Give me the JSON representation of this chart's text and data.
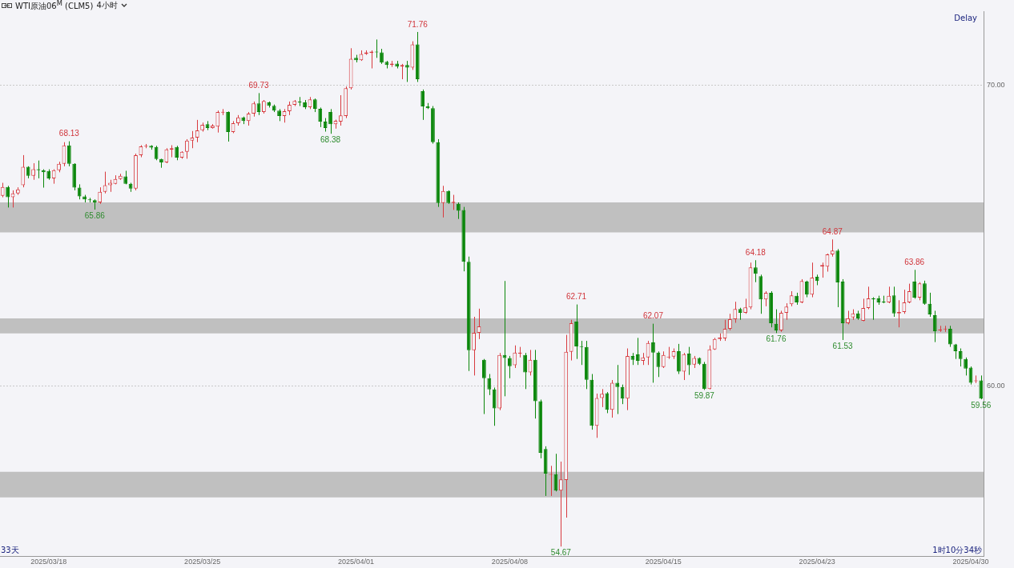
{
  "chart_data": {
    "type": "candlestick",
    "title": "WTI原油06$^{M}$ (CLM5)",
    "subtitle": "4小时",
    "categories": [
      null,
      null,
      null,
      null,
      null,
      null,
      null,
      null,
      null,
      "2025/03/18",
      null,
      null,
      null,
      null,
      null,
      null,
      null,
      null,
      null,
      null,
      null,
      null,
      null,
      null,
      null,
      null,
      null,
      null,
      null,
      null,
      null,
      null,
      null,
      null,
      null,
      null,
      null,
      null,
      null,
      "2025/03/25",
      null,
      null,
      null,
      null,
      null,
      null,
      null,
      null,
      null,
      null,
      null,
      null,
      null,
      null,
      null,
      null,
      null,
      null,
      null,
      null,
      null,
      null,
      null,
      null,
      null,
      null,
      null,
      null,
      null,
      "2025/04/01",
      null,
      null,
      null,
      null,
      null,
      null,
      null,
      null,
      null,
      null,
      null,
      null,
      null,
      null,
      null,
      null,
      null,
      null,
      null,
      null,
      null,
      null,
      null,
      null,
      null,
      null,
      null,
      null,
      null,
      "2025/04/08",
      null,
      null,
      null,
      null,
      null,
      null,
      null,
      null,
      null,
      null,
      null,
      null,
      null,
      null,
      null,
      null,
      null,
      null,
      null,
      null,
      null,
      null,
      null,
      null,
      null,
      null,
      null,
      null,
      null,
      "2025/04/15",
      null,
      null,
      null,
      null,
      null,
      null,
      null,
      null,
      null,
      null,
      null,
      null,
      null,
      null,
      null,
      null,
      null,
      null,
      null,
      null,
      null,
      null,
      null,
      null,
      null,
      null,
      null,
      null,
      null,
      "2025/04/23",
      null,
      null,
      null,
      null,
      null,
      null,
      null,
      null,
      null,
      null,
      null,
      null,
      null,
      null,
      null,
      null,
      null,
      null,
      null,
      null,
      null,
      null,
      null,
      null,
      null,
      null,
      null,
      null,
      null,
      "2025/04/30",
      null,
      null
    ],
    "ohlc": [
      [
        66.32,
        66.75,
        66.27,
        66.61
      ],
      [
        66.61,
        66.65,
        65.93,
        66.27
      ],
      [
        66.27,
        66.5,
        65.93,
        66.4
      ],
      [
        66.4,
        66.6,
        66.35,
        66.53
      ],
      [
        66.67,
        67.67,
        66.6,
        67.28
      ],
      [
        67.28,
        67.3,
        66.9,
        66.98
      ],
      [
        66.98,
        67.4,
        66.85,
        67.2
      ],
      [
        67.2,
        67.49,
        66.9,
        67.17
      ],
      [
        67.17,
        67.2,
        66.59,
        67.1
      ],
      [
        67.14,
        67.2,
        66.85,
        66.9
      ],
      [
        66.9,
        67.2,
        66.72,
        67.17
      ],
      [
        67.17,
        67.45,
        67.1,
        67.38
      ],
      [
        67.38,
        68.1,
        67.3,
        67.99
      ],
      [
        67.99,
        68.13,
        67.3,
        67.38
      ],
      [
        67.38,
        67.4,
        66.5,
        66.59
      ],
      [
        66.59,
        66.7,
        66.2,
        66.3
      ],
      [
        66.3,
        66.35,
        66.1,
        66.2
      ],
      [
        66.2,
        66.25,
        66.1,
        66.17
      ],
      [
        66.17,
        66.2,
        65.86,
        66.1
      ],
      [
        66.1,
        66.6,
        66.05,
        66.45
      ],
      [
        66.45,
        67.12,
        66.4,
        66.67
      ],
      [
        66.67,
        66.85,
        66.45,
        66.75
      ],
      [
        66.72,
        67.0,
        66.7,
        66.88
      ],
      [
        66.88,
        67.05,
        66.85,
        66.98
      ],
      [
        66.96,
        67.15,
        66.7,
        66.72
      ],
      [
        66.72,
        66.75,
        66.45,
        66.56
      ],
      [
        66.56,
        67.72,
        66.5,
        67.67
      ],
      [
        67.67,
        68.0,
        67.6,
        67.96
      ],
      [
        67.95,
        68.04,
        67.9,
        67.98
      ],
      [
        67.98,
        68.0,
        67.85,
        67.92
      ],
      [
        67.94,
        67.98,
        67.5,
        67.54
      ],
      [
        67.54,
        67.55,
        67.25,
        67.43
      ],
      [
        67.43,
        67.9,
        67.4,
        67.86
      ],
      [
        67.85,
        68.0,
        67.6,
        67.9
      ],
      [
        67.94,
        67.98,
        67.5,
        67.59
      ],
      [
        67.59,
        67.8,
        67.55,
        67.78
      ],
      [
        67.78,
        68.2,
        67.55,
        68.15
      ],
      [
        68.15,
        68.47,
        67.9,
        68.25
      ],
      [
        68.25,
        68.84,
        68.1,
        68.49
      ],
      [
        68.5,
        68.75,
        68.45,
        68.68
      ],
      [
        68.7,
        68.8,
        68.5,
        68.57
      ],
      [
        68.57,
        68.7,
        68.55,
        68.65
      ],
      [
        68.62,
        69.15,
        68.42,
        69.1
      ],
      [
        69.08,
        69.2,
        69.0,
        69.1
      ],
      [
        69.1,
        69.12,
        68.12,
        68.44
      ],
      [
        68.44,
        68.8,
        68.4,
        68.73
      ],
      [
        68.73,
        69.0,
        68.65,
        68.92
      ],
      [
        68.92,
        68.95,
        68.7,
        68.8
      ],
      [
        68.8,
        69.1,
        68.65,
        69.05
      ],
      [
        69.05,
        69.45,
        68.95,
        69.39
      ],
      [
        69.39,
        69.73,
        69.0,
        69.1
      ],
      [
        69.1,
        69.5,
        69.05,
        69.47
      ],
      [
        69.42,
        69.45,
        69.25,
        69.31
      ],
      [
        69.31,
        69.35,
        69.1,
        69.15
      ],
      [
        69.15,
        69.2,
        68.8,
        68.97
      ],
      [
        68.97,
        69.2,
        68.75,
        69.13
      ],
      [
        69.13,
        69.45,
        69.0,
        69.34
      ],
      [
        69.34,
        69.5,
        69.3,
        69.47
      ],
      [
        69.45,
        69.6,
        69.3,
        69.42
      ],
      [
        69.42,
        69.5,
        69.2,
        69.26
      ],
      [
        69.26,
        69.6,
        69.2,
        69.52
      ],
      [
        69.52,
        69.55,
        69.1,
        69.21
      ],
      [
        69.21,
        69.25,
        68.6,
        68.78
      ],
      [
        68.78,
        68.9,
        68.45,
        68.57
      ],
      [
        69.1,
        69.2,
        68.38,
        68.7
      ],
      [
        68.7,
        68.85,
        68.55,
        68.81
      ],
      [
        68.78,
        69.66,
        68.65,
        68.99
      ],
      [
        68.97,
        69.95,
        68.9,
        69.89
      ],
      [
        69.89,
        71.22,
        69.85,
        70.87
      ],
      [
        70.9,
        71.0,
        70.75,
        70.82
      ],
      [
        70.82,
        71.15,
        70.8,
        71.03
      ],
      [
        71.03,
        71.15,
        71.0,
        71.08
      ],
      [
        71.06,
        71.15,
        70.55,
        71.11
      ],
      [
        71.11,
        71.51,
        70.9,
        71.08
      ],
      [
        71.08,
        71.2,
        70.7,
        70.74
      ],
      [
        70.77,
        70.8,
        70.55,
        70.66
      ],
      [
        70.66,
        70.8,
        70.6,
        70.71
      ],
      [
        70.71,
        70.8,
        70.55,
        70.61
      ],
      [
        70.61,
        70.7,
        70.19,
        70.66
      ],
      [
        70.66,
        70.8,
        70.1,
        70.58
      ],
      [
        70.58,
        71.45,
        70.5,
        71.35
      ],
      [
        71.35,
        71.76,
        70.1,
        70.19
      ],
      [
        69.79,
        69.85,
        68.84,
        69.29
      ],
      [
        69.29,
        69.4,
        69.2,
        69.23
      ],
      [
        69.23,
        69.3,
        68.05,
        68.1
      ],
      [
        68.1,
        68.2,
        65.95,
        66.08
      ],
      [
        66.08,
        66.65,
        65.6,
        66.48
      ],
      [
        66.48,
        66.5,
        66.05,
        66.08
      ],
      [
        66.08,
        66.35,
        65.85,
        66.12
      ],
      [
        66.05,
        66.1,
        65.55,
        65.82
      ],
      [
        65.85,
        65.95,
        63.81,
        64.13
      ],
      [
        64.13,
        64.3,
        60.5,
        61.19
      ],
      [
        61.19,
        62.3,
        60.35,
        61.77
      ],
      [
        61.77,
        62.57,
        61.56,
        61.98
      ],
      [
        60.87,
        60.9,
        59.07,
        60.26
      ],
      [
        60.26,
        60.4,
        59.7,
        59.89
      ],
      [
        59.89,
        59.95,
        58.68,
        59.26
      ],
      [
        59.26,
        61.1,
        59.2,
        61.03
      ],
      [
        61.03,
        63.49,
        59.66,
        60.93
      ],
      [
        60.93,
        61.0,
        60.26,
        60.66
      ],
      [
        60.69,
        61.35,
        60.6,
        61.11
      ],
      [
        61.08,
        61.3,
        60.95,
        61.11
      ],
      [
        61.03,
        61.1,
        59.9,
        60.45
      ],
      [
        60.45,
        61.2,
        60.35,
        60.87
      ],
      [
        60.87,
        61.2,
        58.92,
        59.5
      ],
      [
        59.5,
        59.55,
        57.6,
        57.78
      ],
      [
        57.91,
        58.0,
        56.35,
        57.09
      ],
      [
        57.05,
        57.35,
        56.35,
        57.07
      ],
      [
        57.07,
        57.75,
        56.5,
        56.53
      ],
      [
        56.53,
        57.49,
        54.67,
        56.9
      ],
      [
        56.88,
        61.7,
        55.63,
        61.14
      ],
      [
        61.14,
        62.2,
        60.85,
        62.09
      ],
      [
        62.14,
        62.71,
        60.9,
        61.32
      ],
      [
        61.32,
        61.5,
        60.7,
        61.3
      ],
      [
        61.3,
        61.5,
        59.9,
        60.21
      ],
      [
        60.21,
        60.4,
        58.55,
        58.68
      ],
      [
        58.68,
        59.75,
        58.28,
        59.6
      ],
      [
        59.6,
        59.9,
        59.3,
        59.74
      ],
      [
        59.76,
        59.8,
        59.1,
        59.21
      ],
      [
        59.21,
        60.2,
        58.95,
        60.11
      ],
      [
        60.11,
        60.7,
        59.07,
        59.97
      ],
      [
        59.97,
        60.05,
        59.4,
        59.58
      ],
      [
        59.58,
        61.25,
        59.2,
        61.0
      ],
      [
        61.0,
        61.1,
        60.7,
        60.87
      ],
      [
        61.05,
        61.6,
        60.7,
        60.84
      ],
      [
        60.84,
        61.1,
        60.7,
        60.95
      ],
      [
        60.95,
        61.5,
        60.7,
        61.43
      ],
      [
        61.45,
        62.07,
        60.11,
        61.11
      ],
      [
        61.11,
        61.15,
        60.3,
        60.63
      ],
      [
        60.63,
        61.15,
        60.6,
        61.03
      ],
      [
        60.95,
        61.3,
        60.9,
        60.98
      ],
      [
        60.98,
        61.25,
        60.9,
        61.16
      ],
      [
        61.16,
        61.4,
        60.4,
        60.48
      ],
      [
        60.48,
        61.1,
        60.2,
        61.06
      ],
      [
        61.08,
        61.3,
        60.37,
        60.69
      ],
      [
        60.71,
        61.0,
        60.6,
        60.93
      ],
      [
        60.93,
        60.95,
        60.7,
        60.74
      ],
      [
        60.74,
        60.8,
        59.87,
        59.9
      ],
      [
        59.9,
        61.35,
        59.89,
        61.22
      ],
      [
        61.22,
        61.6,
        61.2,
        61.56
      ],
      [
        61.56,
        61.75,
        61.5,
        61.61
      ],
      [
        61.58,
        62.2,
        61.5,
        61.9
      ],
      [
        61.9,
        62.4,
        61.85,
        62.22
      ],
      [
        62.22,
        62.8,
        62.1,
        62.56
      ],
      [
        62.56,
        62.6,
        62.2,
        62.43
      ],
      [
        62.43,
        62.9,
        62.4,
        62.61
      ],
      [
        62.61,
        64.1,
        62.55,
        63.94
      ],
      [
        63.94,
        64.18,
        63.45,
        63.73
      ],
      [
        63.65,
        63.7,
        62.4,
        62.88
      ],
      [
        62.88,
        63.15,
        62.65,
        63.1
      ],
      [
        63.1,
        63.15,
        61.95,
        62.09
      ],
      [
        62.07,
        62.55,
        61.76,
        61.85
      ],
      [
        61.85,
        62.5,
        61.8,
        62.43
      ],
      [
        62.43,
        62.75,
        62.2,
        62.64
      ],
      [
        62.72,
        63.15,
        62.65,
        63.01
      ],
      [
        63.0,
        63.1,
        62.7,
        62.78
      ],
      [
        62.78,
        63.55,
        62.75,
        63.49
      ],
      [
        63.47,
        63.5,
        62.95,
        63.04
      ],
      [
        63.04,
        64.1,
        62.95,
        63.6
      ],
      [
        63.63,
        63.7,
        63.35,
        63.49
      ],
      [
        63.97,
        64.1,
        63.6,
        64.02
      ],
      [
        63.97,
        64.4,
        63.8,
        64.37
      ],
      [
        64.37,
        64.87,
        64.3,
        64.5
      ],
      [
        64.5,
        64.55,
        62.62,
        63.44
      ],
      [
        63.47,
        63.55,
        61.53,
        62.09
      ],
      [
        62.09,
        62.5,
        62.05,
        62.25
      ],
      [
        62.28,
        62.55,
        62.2,
        62.41
      ],
      [
        62.41,
        62.5,
        62.2,
        62.25
      ],
      [
        62.17,
        62.9,
        62.15,
        62.59
      ],
      [
        62.59,
        63.3,
        62.55,
        62.91
      ],
      [
        62.91,
        62.95,
        62.2,
        62.88
      ],
      [
        62.91,
        63.0,
        62.7,
        62.78
      ],
      [
        62.8,
        63.0,
        62.75,
        62.78
      ],
      [
        62.78,
        63.3,
        62.75,
        63.0
      ],
      [
        63.01,
        63.3,
        62.3,
        62.41
      ],
      [
        62.41,
        62.85,
        61.95,
        62.46
      ],
      [
        62.46,
        63.2,
        62.4,
        62.78
      ],
      [
        62.78,
        63.4,
        62.75,
        63.15
      ],
      [
        63.47,
        63.86,
        62.9,
        62.94
      ],
      [
        62.94,
        63.45,
        62.85,
        63.41
      ],
      [
        63.41,
        63.5,
        62.7,
        62.73
      ],
      [
        62.73,
        63.1,
        62.3,
        62.38
      ],
      [
        62.35,
        62.5,
        61.46,
        61.82
      ],
      [
        61.84,
        62.0,
        61.8,
        61.88
      ],
      [
        61.88,
        62.0,
        61.8,
        61.9
      ],
      [
        61.9,
        62.0,
        61.3,
        61.38
      ],
      [
        61.38,
        61.4,
        60.9,
        61.16
      ],
      [
        61.16,
        61.25,
        60.65,
        60.9
      ],
      [
        60.9,
        60.95,
        60.35,
        60.58
      ],
      [
        60.61,
        60.65,
        60.05,
        60.11
      ],
      [
        60.16,
        60.35,
        60.1,
        60.19
      ],
      [
        60.19,
        60.35,
        59.56,
        59.58
      ]
    ],
    "colors": [
      "#d83a3f",
      "#0b870b",
      "#d83a3f",
      "#d83a3f",
      "#d83a3f",
      "#0b870b",
      "#d83a3f",
      "#0b870b",
      "#0b870b",
      "#0b870b",
      "#d83a3f",
      "#d83a3f",
      "#d83a3f",
      "#0b870b",
      "#0b870b",
      "#0b870b",
      "#0b870b",
      "#0b870b",
      "#0b870b",
      "#d83a3f",
      "#d83a3f",
      "#d83a3f",
      "#d83a3f",
      "#d83a3f",
      "#0b870b",
      "#0b870b",
      "#d83a3f",
      "#d83a3f",
      "#d83a3f",
      "#0b870b",
      "#0b870b",
      "#0b870b",
      "#d83a3f",
      "#d83a3f",
      "#0b870b",
      "#d83a3f",
      "#d83a3f",
      "#d83a3f",
      "#d83a3f",
      "#d83a3f",
      "#0b870b",
      "#d83a3f",
      "#d83a3f",
      "#d83a3f",
      "#0b870b",
      "#d83a3f",
      "#d83a3f",
      "#0b870b",
      "#d83a3f",
      "#d83a3f",
      "#0b870b",
      "#d83a3f",
      "#0b870b",
      "#0b870b",
      "#0b870b",
      "#d83a3f",
      "#d83a3f",
      "#d83a3f",
      "#0b870b",
      "#0b870b",
      "#d83a3f",
      "#0b870b",
      "#0b870b",
      "#0b870b",
      "#0b870b",
      "#d83a3f",
      "#d83a3f",
      "#d83a3f",
      "#d83a3f",
      "#0b870b",
      "#d83a3f",
      "#d83a3f",
      "#d83a3f",
      "#0b870b",
      "#0b870b",
      "#0b870b",
      "#d83a3f",
      "#0b870b",
      "#d83a3f",
      "#0b870b",
      "#d83a3f",
      "#0b870b",
      "#0b870b",
      "#0b870b",
      "#0b870b",
      "#0b870b",
      "#d83a3f",
      "#0b870b",
      "#d83a3f",
      "#0b870b",
      "#0b870b",
      "#0b870b",
      "#d83a3f",
      "#d83a3f",
      "#0b870b",
      "#0b870b",
      "#0b870b",
      "#d83a3f",
      "#0b870b",
      "#0b870b",
      "#d83a3f",
      "#d83a3f",
      "#0b870b",
      "#d83a3f",
      "#0b870b",
      "#0b870b",
      "#0b870b",
      "#d83a3f",
      "#0b870b",
      "#d83a3f",
      "#d83a3f",
      "#d83a3f",
      "#0b870b",
      "#0b870b",
      "#0b870b",
      "#0b870b",
      "#d83a3f",
      "#d83a3f",
      "#0b870b",
      "#d83a3f",
      "#0b870b",
      "#0b870b",
      "#d83a3f",
      "#0b870b",
      "#0b870b",
      "#d83a3f",
      "#d83a3f",
      "#0b870b",
      "#0b870b",
      "#d83a3f",
      "#d83a3f",
      "#d83a3f",
      "#0b870b",
      "#d83a3f",
      "#0b870b",
      "#d83a3f",
      "#0b870b",
      "#0b870b",
      "#d83a3f",
      "#d83a3f",
      "#d83a3f",
      "#d83a3f",
      "#d83a3f",
      "#d83a3f",
      "#0b870b",
      "#d83a3f",
      "#d83a3f",
      "#0b870b",
      "#0b870b",
      "#d83a3f",
      "#0b870b",
      "#0b870b",
      "#d83a3f",
      "#d83a3f",
      "#d83a3f",
      "#0b870b",
      "#d83a3f",
      "#0b870b",
      "#d83a3f",
      "#0b870b",
      "#d83a3f",
      "#d83a3f",
      "#d83a3f",
      "#0b870b",
      "#0b870b",
      "#d83a3f",
      "#d83a3f",
      "#0b870b",
      "#d83a3f",
      "#d83a3f",
      "#0b870b",
      "#0b870b",
      "#0b870b",
      "#d83a3f",
      "#0b870b",
      "#d83a3f",
      "#d83a3f",
      "#d83a3f",
      "#0b870b",
      "#d83a3f",
      "#0b870b",
      "#0b870b",
      "#0b870b",
      "#d83a3f",
      "#d83a3f",
      "#0b870b",
      "#0b870b",
      "#0b870b",
      "#0b870b",
      "#0b870b",
      "#d83a3f",
      "#0b870b"
    ],
    "ylim": [
      54.35,
      72.45
    ],
    "yticks": [
      {
        "value": 60,
        "label": "60.00"
      },
      {
        "value": 70,
        "label": "70.00"
      }
    ],
    "grid": "y",
    "bands": [
      {
        "axis": "y",
        "from": 65.1,
        "to": 66.1,
        "color": "#c0c0c0"
      },
      {
        "axis": "y",
        "from": 56.3,
        "to": 57.15,
        "color": "#c0c0c0"
      },
      {
        "axis": "y",
        "from": 61.75,
        "to": 62.25,
        "color": "#c0c0c0"
      }
    ],
    "annotations": [
      "Delay",
      "33天",
      "1时10分34秒",
      {
        "text": "68.13",
        "y": 68.13
      },
      {
        "text": "65.86",
        "y": 65.86
      },
      {
        "text": "69.73",
        "y": 69.73
      },
      {
        "text": "68.38",
        "y": 68.38
      },
      {
        "text": "71.76",
        "y": 71.76
      },
      {
        "text": "54.67",
        "y": 54.67
      },
      {
        "text": "62.71",
        "y": 62.71
      },
      {
        "text": "62.07",
        "y": 62.07
      },
      {
        "text": "59.87",
        "y": 59.87
      },
      {
        "text": "64.18",
        "y": 64.18
      },
      {
        "text": "61.76",
        "y": 61.76
      },
      {
        "text": "64.87",
        "y": 64.87
      },
      {
        "text": "61.53",
        "y": 61.53
      },
      {
        "text": "63.86",
        "y": 63.86
      },
      {
        "text": "59.56",
        "y": 59.56
      }
    ]
  }
}
